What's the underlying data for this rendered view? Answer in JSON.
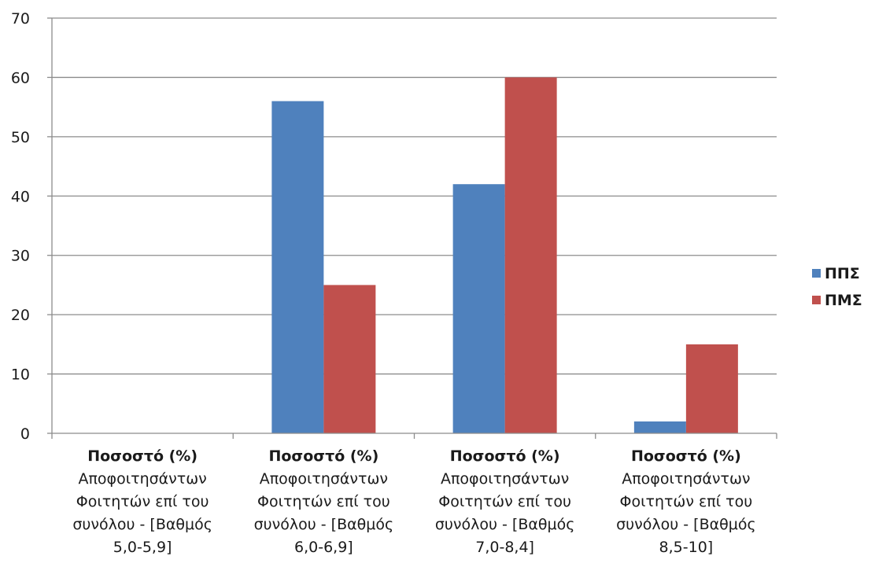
{
  "chart_data": {
    "type": "bar",
    "categories": [
      [
        "Ποσοστό (%)",
        "Αποφοιτησάντων",
        "Φοιτητών επί του",
        "συνόλου - [Βαθμός",
        "5,0-5,9]"
      ],
      [
        "Ποσοστό (%)",
        "Αποφοιτησάντων",
        "Φοιτητών επί του",
        "συνόλου - [Βαθμός",
        "6,0-6,9]"
      ],
      [
        "Ποσοστό (%)",
        "Αποφοιτησάντων",
        "Φοιτητών επί του",
        "συνόλου - [Βαθμός",
        "7,0-8,4]"
      ],
      [
        "Ποσοστό (%)",
        "Αποφοιτησάντων",
        "Φοιτητών επί του",
        "συνόλου - [Βαθμός",
        "8,5-10]"
      ]
    ],
    "series": [
      {
        "name": "ΠΠΣ",
        "color": "#4f81bd",
        "values": [
          0,
          56,
          42,
          2
        ]
      },
      {
        "name": "ΠΜΣ",
        "color": "#c0504d",
        "values": [
          0,
          25,
          60,
          15
        ]
      }
    ],
    "ylim": [
      0,
      70
    ],
    "yticks": [
      0,
      10,
      20,
      30,
      40,
      50,
      60,
      70
    ],
    "grid": true,
    "legend_position": "right"
  }
}
